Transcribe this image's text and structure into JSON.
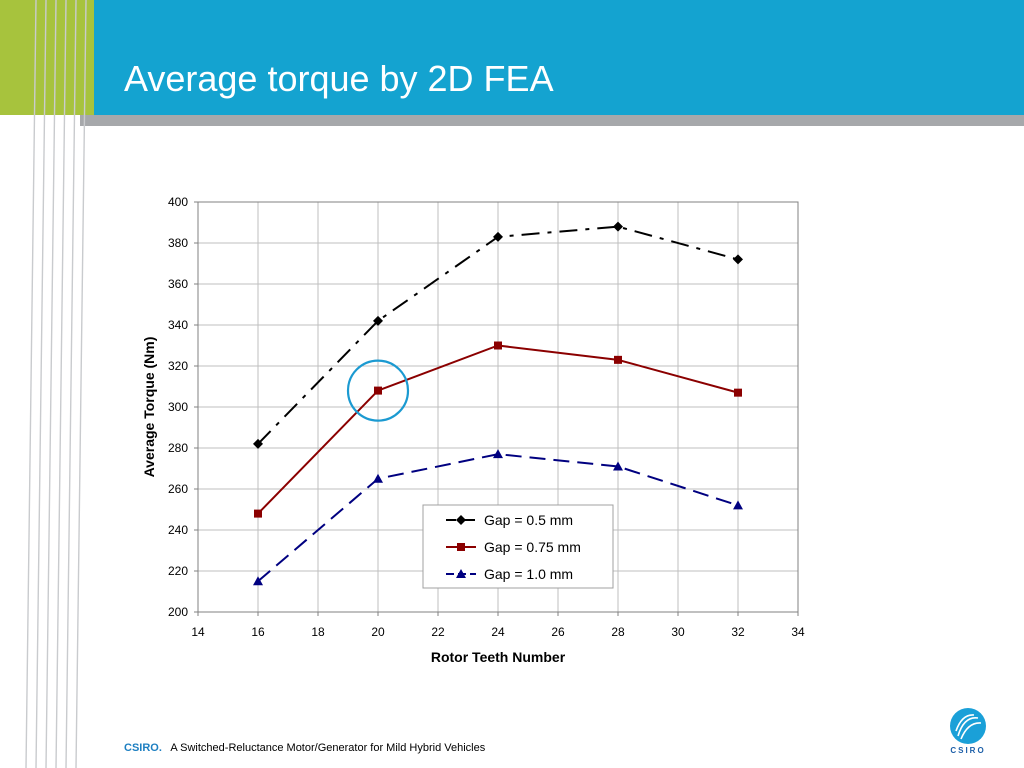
{
  "slide": {
    "title": "Average torque by 2D FEA",
    "footer_brand": "CSIRO.",
    "footer_text": "A Switched-Reluctance Motor/Generator for Mild Hybrid Vehicles",
    "logo_text": "CSIRO",
    "colors": {
      "header_blue": "#14a3d0",
      "header_green": "#a7c33d",
      "header_grey": "#a6a8ab",
      "highlight_circle": "#1b9ad1"
    }
  },
  "chart_data": {
    "type": "line",
    "xlabel": "Rotor Teeth Number",
    "ylabel": "Average Torque (Nm)",
    "xlim": [
      14,
      34
    ],
    "ylim": [
      200,
      400
    ],
    "xticks": [
      14,
      16,
      18,
      20,
      22,
      24,
      26,
      28,
      30,
      32,
      34
    ],
    "yticks": [
      200,
      220,
      240,
      260,
      280,
      300,
      320,
      340,
      360,
      380,
      400
    ],
    "grid": true,
    "legend_position": "bottom-center",
    "x": [
      16,
      20,
      24,
      28,
      32
    ],
    "series": [
      {
        "name": "Gap = 0.5 mm",
        "values": [
          282,
          342,
          383,
          388,
          372
        ],
        "color": "#000000",
        "marker": "diamond",
        "dash": "dash-dot"
      },
      {
        "name": "Gap = 0.75 mm",
        "values": [
          248,
          308,
          330,
          323,
          307
        ],
        "color": "#8b0000",
        "marker": "square",
        "dash": "solid"
      },
      {
        "name": "Gap = 1.0 mm",
        "values": [
          215,
          265,
          277,
          271,
          252
        ],
        "color": "#000080",
        "marker": "triangle",
        "dash": "dash"
      }
    ],
    "annotations": [
      {
        "type": "circle",
        "x": 20,
        "y": 308
      }
    ]
  }
}
